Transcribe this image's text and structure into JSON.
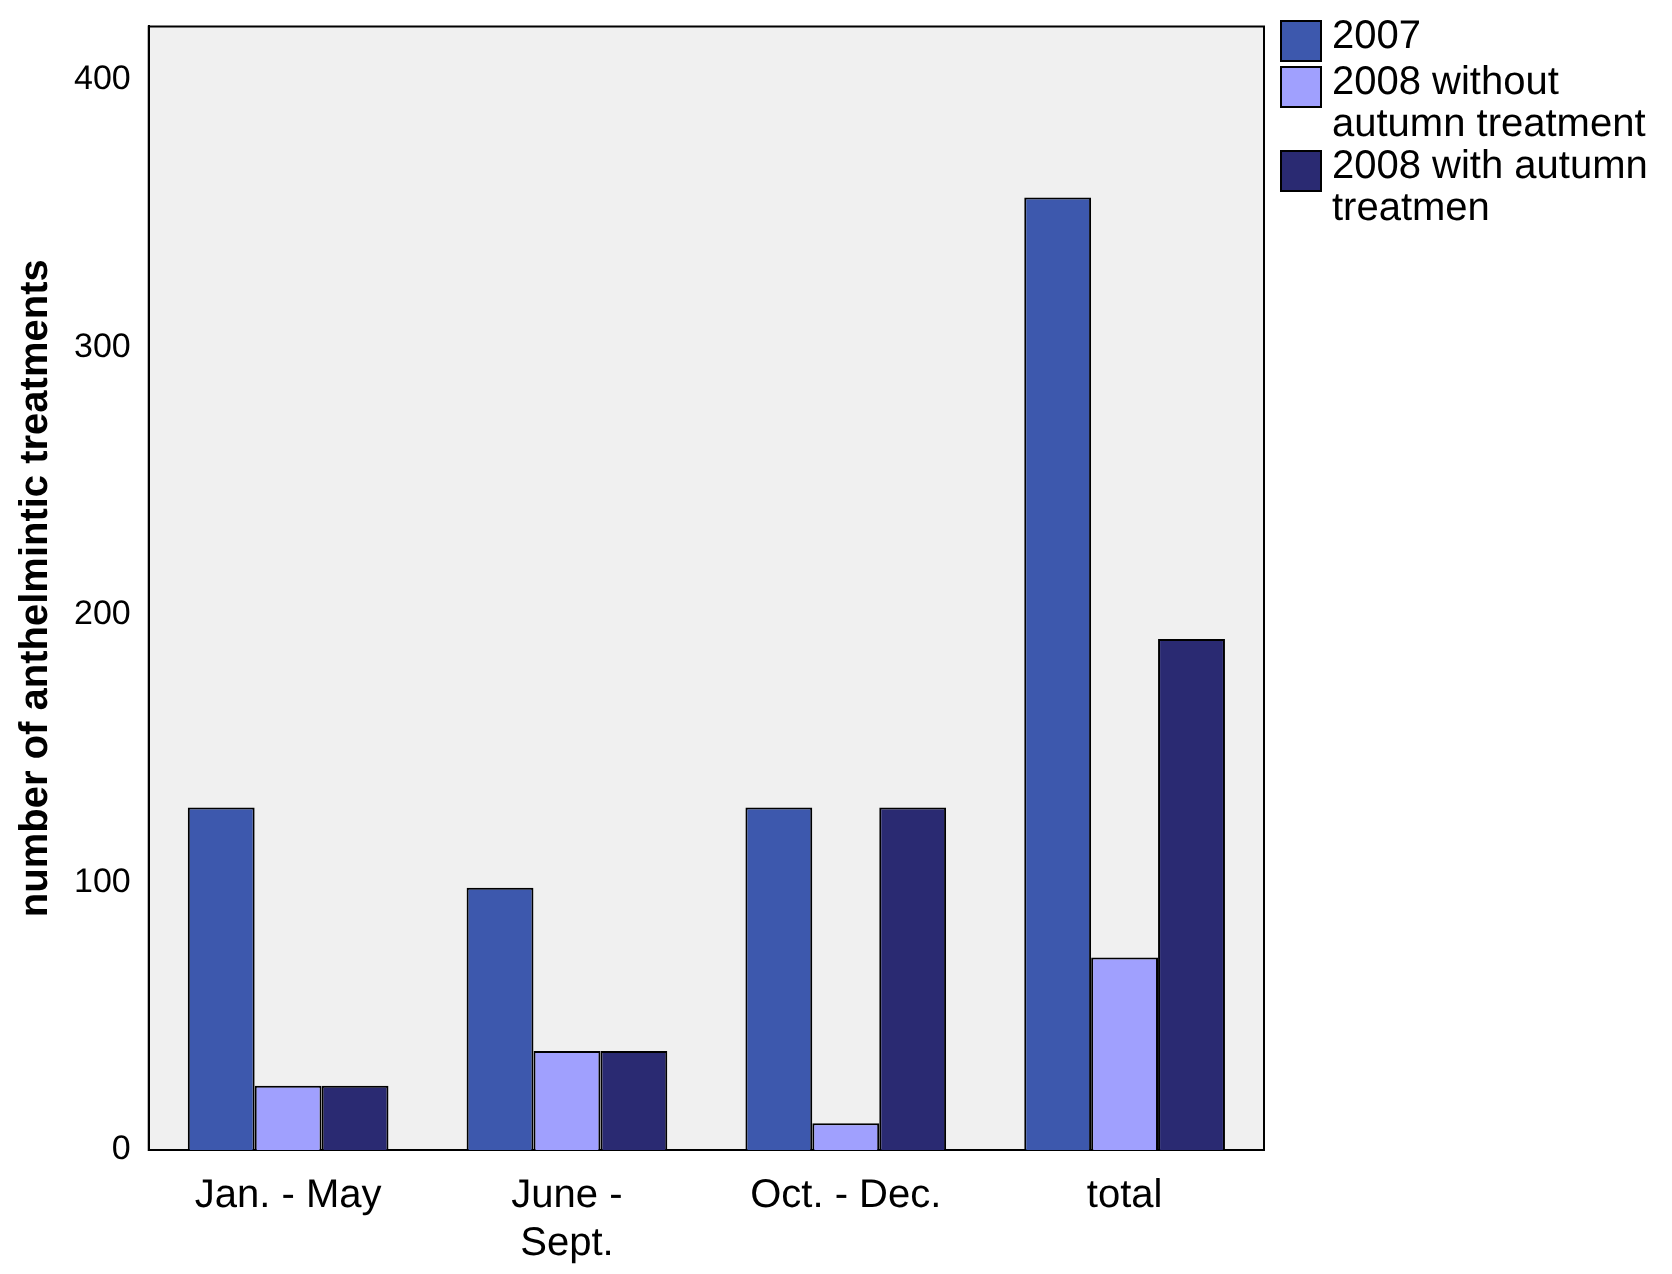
{
  "chart_data": {
    "type": "bar",
    "ylabel": "number of anthelmintic treatments",
    "categories": [
      "Jan. - May",
      "June - Sept.",
      "Oct. - Dec.",
      "total"
    ],
    "series": [
      {
        "name": "2007",
        "color": "#3d58ad",
        "values": [
          128,
          98,
          128,
          356
        ]
      },
      {
        "name": "2008 without autumn treatment",
        "color": "#a0a0fe",
        "values": [
          24,
          37,
          10,
          72
        ]
      },
      {
        "name": "2008 with autumn treatmen",
        "color": "#2a2a72",
        "values": [
          24,
          37,
          128,
          191
        ]
      }
    ],
    "ylim": [
      0,
      420
    ],
    "yticks": [
      0,
      100,
      200,
      300,
      400
    ],
    "grid": false,
    "legend": "top right"
  }
}
